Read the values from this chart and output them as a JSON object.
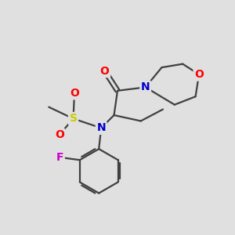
{
  "bg_color": "#e0e0e0",
  "bond_color": "#404040",
  "bond_width": 1.6,
  "atom_colors": {
    "O": "#ff0000",
    "N": "#0000cc",
    "S": "#cccc00",
    "F": "#cc00cc",
    "C": "#404040"
  },
  "font_size": 10,
  "fig_size": [
    3.0,
    3.0
  ],
  "dpi": 100
}
